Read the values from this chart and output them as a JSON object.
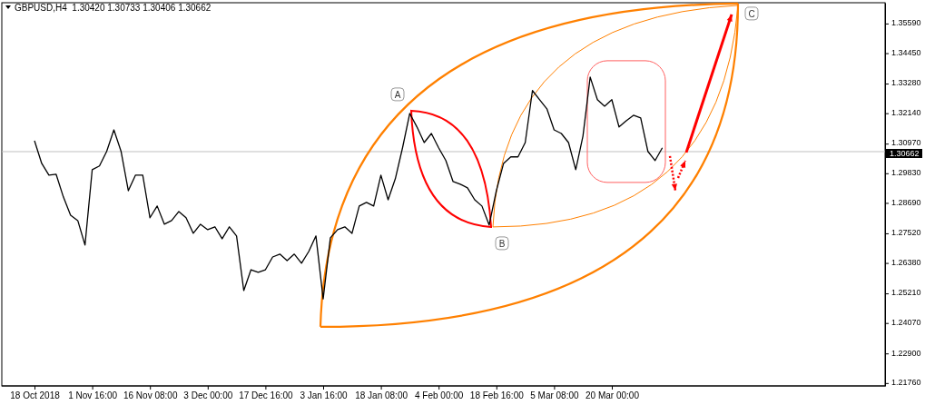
{
  "chart_data": {
    "type": "line",
    "title": "GBPUSD,H4  1.30420 1.30733 1.30406 1.30662",
    "categories": [
      "18 Oct 2018",
      null,
      null,
      null,
      null,
      null,
      null,
      null,
      "1 Nov 16:00",
      null,
      null,
      null,
      null,
      null,
      null,
      null,
      "16 Nov 08:00",
      null,
      null,
      null,
      null,
      null,
      null,
      null,
      "3 Dec 00:00",
      null,
      null,
      null,
      null,
      null,
      null,
      null,
      "17 Dec 16:00",
      null,
      null,
      null,
      null,
      null,
      null,
      null,
      "3 Jan 16:00",
      null,
      null,
      null,
      null,
      null,
      null,
      null,
      "18 Jan 08:00",
      null,
      null,
      null,
      null,
      null,
      null,
      null,
      "4 Feb 00:00",
      null,
      null,
      null,
      null,
      null,
      null,
      null,
      "18 Feb 16:00",
      null,
      null,
      null,
      null,
      null,
      null,
      null,
      "5 Mar 08:00",
      null,
      null,
      null,
      null,
      null,
      null,
      null,
      "20 Mar 00:00",
      null,
      null,
      null,
      null,
      null,
      null,
      null,
      null,
      null,
      null,
      null,
      null,
      null,
      null,
      null,
      null,
      null,
      null,
      null,
      null,
      null,
      null,
      null,
      null,
      null,
      null,
      null,
      null,
      null,
      null,
      null,
      null,
      null,
      null,
      null,
      null,
      null,
      null
    ],
    "series": [
      {
        "color": "#000000",
        "values": [
          1.3108,
          1.3021,
          1.2976,
          1.2979,
          1.2892,
          1.2822,
          1.2801,
          1.2707,
          1.2997,
          1.3011,
          1.3067,
          1.315,
          1.3067,
          1.2916,
          1.2976,
          1.2976,
          1.2812,
          1.2857,
          1.2787,
          1.2801,
          1.2836,
          1.2812,
          1.2752,
          1.2787,
          1.2766,
          1.2777,
          1.2731,
          1.2777,
          1.2742,
          1.2532,
          1.2612,
          1.2602,
          1.2612,
          1.2661,
          1.2672,
          1.2647,
          1.2672,
          1.2637,
          1.2682,
          1.2742,
          1.25,
          1.2735,
          1.2766,
          1.2777,
          1.2752,
          1.2857,
          1.2871,
          1.2857,
          1.2976,
          1.2881,
          1.2962,
          1.3081,
          1.3213,
          1.3161,
          1.3101,
          1.3136,
          1.3081,
          1.3032,
          1.2951,
          1.2941,
          1.2927,
          1.2881,
          1.2857,
          1.2784,
          1.2916,
          1.3021,
          1.3046,
          1.3046,
          1.3101,
          1.3301,
          1.3266,
          1.3231,
          1.315,
          1.3136,
          1.3101,
          1.2997,
          1.3126,
          1.3353,
          1.3266,
          1.3241,
          1.3266,
          1.3161,
          1.3185,
          1.3206,
          1.3196,
          1.3067,
          1.3032,
          1.3081,
          null,
          null,
          null,
          null,
          null,
          null,
          null,
          null,
          null,
          null,
          null,
          null,
          null,
          null,
          null,
          null,
          null,
          null,
          null,
          null,
          null,
          null,
          null,
          null,
          null,
          null,
          null,
          null,
          null,
          null,
          null
        ]
      }
    ],
    "ylim": [
      1.2165,
      1.3639
    ],
    "yticks": [
      {
        "value": 1.3559,
        "label": "1.35590"
      },
      {
        "value": 1.3445,
        "label": "1.34450"
      },
      {
        "value": 1.3328,
        "label": "1.33280"
      },
      {
        "value": 1.3214,
        "label": "1.32140"
      },
      {
        "value": 1.3097,
        "label": "1.30970"
      },
      {
        "value": 1.2983,
        "label": "1.29830"
      },
      {
        "value": 1.2869,
        "label": "1.28690"
      },
      {
        "value": 1.2752,
        "label": "1.27520"
      },
      {
        "value": 1.2638,
        "label": "1.26380"
      },
      {
        "value": 1.2521,
        "label": "1.25210"
      },
      {
        "value": 1.2407,
        "label": "1.24070"
      },
      {
        "value": 1.229,
        "label": "1.22900"
      },
      {
        "value": 1.2176,
        "label": "1.21760"
      }
    ],
    "ref_lines": [
      {
        "axis": "y",
        "value": 1.30662,
        "label": "1.30662",
        "color": "#c0c0c0"
      }
    ],
    "annotations": [
      "A",
      "B",
      "C"
    ]
  }
}
